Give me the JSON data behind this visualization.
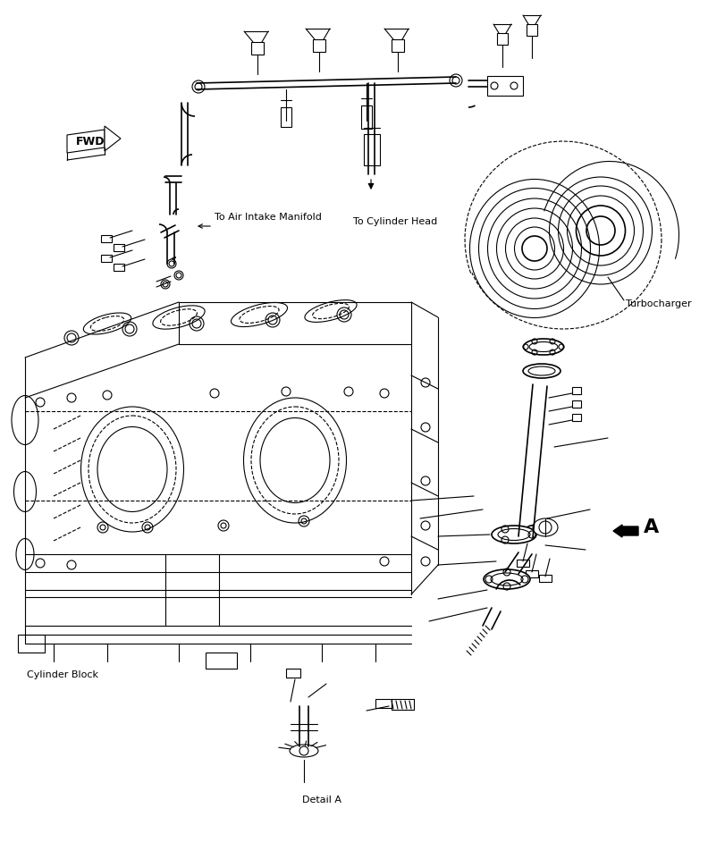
{
  "background_color": "#ffffff",
  "line_color": "#000000",
  "fig_width": 7.92,
  "fig_height": 9.61,
  "dpi": 100,
  "labels": {
    "to_air": "To Air Intake Manifold",
    "to_cyl": "To Cylinder Head",
    "turbocharger": "Turbocharger",
    "cylinder_block": "Cylinder Block",
    "detail_a": "Detail A",
    "a_label": "A"
  }
}
